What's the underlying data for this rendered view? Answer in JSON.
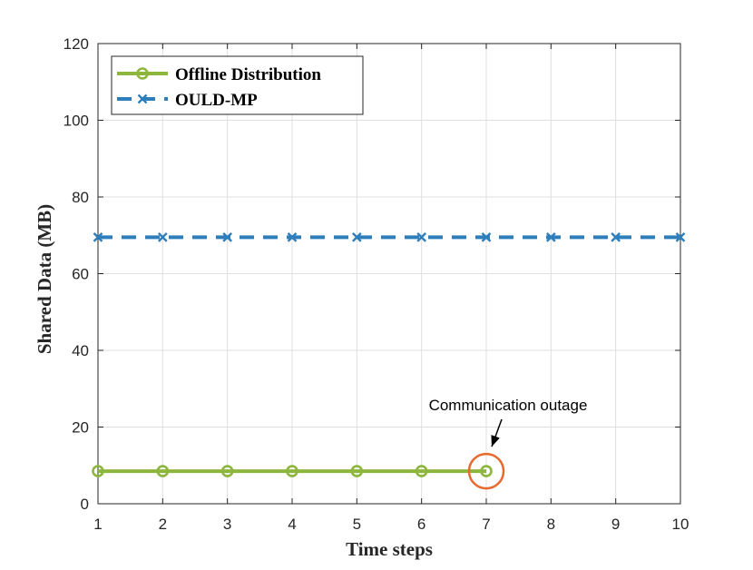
{
  "chart_data": {
    "type": "line",
    "xlabel": "Time steps",
    "ylabel": "Shared Data (MB)",
    "xlim": [
      1,
      10
    ],
    "ylim": [
      0,
      120
    ],
    "xticks": [
      "1",
      "2",
      "3",
      "4",
      "5",
      "6",
      "7",
      "8",
      "9",
      "10"
    ],
    "yticks": [
      "0",
      "20",
      "40",
      "60",
      "80",
      "100",
      "120"
    ],
    "grid": true,
    "legend_position": "top-left",
    "series": [
      {
        "name": "Offline Distribution",
        "color": "#8db63c",
        "marker": "circle",
        "line_style": "solid",
        "x": [
          1,
          2,
          3,
          4,
          5,
          6,
          7
        ],
        "y": [
          8.5,
          8.5,
          8.5,
          8.5,
          8.5,
          8.5,
          8.5
        ]
      },
      {
        "name": "OULD-MP",
        "color": "#2e7ebc",
        "marker": "x",
        "line_style": "dashed",
        "x": [
          1,
          2,
          3,
          4,
          5,
          6,
          7,
          8,
          9,
          10
        ],
        "y": [
          69.5,
          69.5,
          69.5,
          69.5,
          69.5,
          69.5,
          69.5,
          69.5,
          69.5,
          69.5
        ]
      }
    ],
    "annotations": [
      {
        "text": "Communication outage",
        "target_x": 7,
        "target_y": 8.5,
        "circle_color": "#e8692c"
      }
    ]
  }
}
